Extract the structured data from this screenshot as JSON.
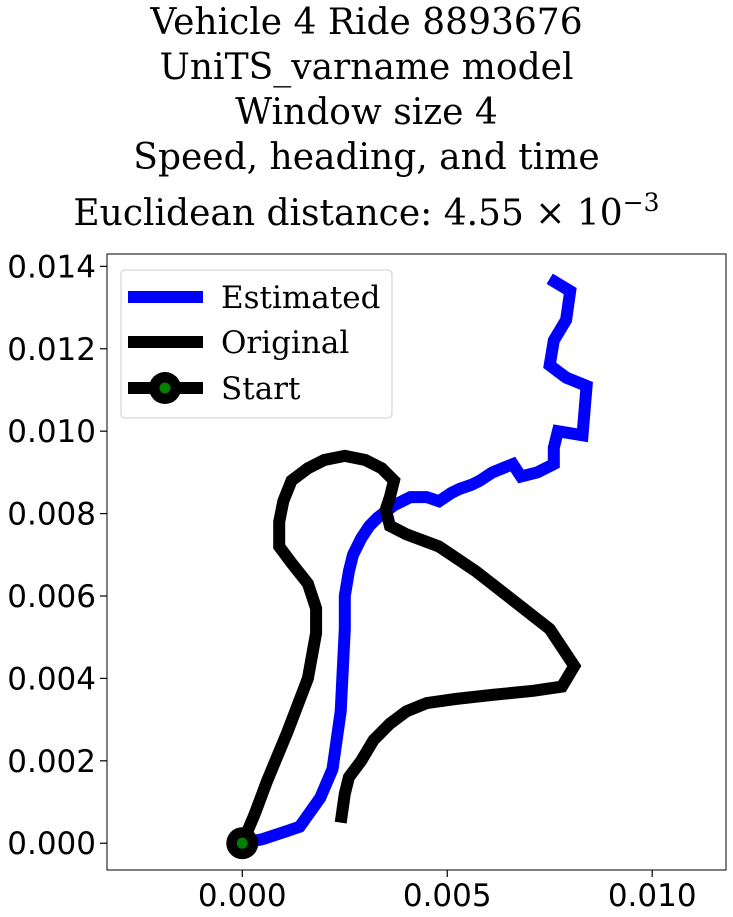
{
  "title_lines": [
    "Vehicle 4 Ride 8893676",
    "UniTS_varname model",
    "Window size 4",
    "Speed, heading, and time"
  ],
  "title_distance_prefix": "Euclidean distance: 4.55 × 10",
  "title_distance_exponent": "−3",
  "chart_data": {
    "type": "line",
    "xlim": [
      -0.0033,
      0.0118
    ],
    "ylim": [
      -0.00065,
      0.0143
    ],
    "x_ticks": [
      0.0,
      0.005,
      0.01
    ],
    "x_tick_labels": [
      "0.000",
      "0.005",
      "0.010"
    ],
    "y_ticks": [
      0.0,
      0.002,
      0.004,
      0.006,
      0.008,
      0.01,
      0.012,
      0.014
    ],
    "y_tick_labels": [
      "0.000",
      "0.002",
      "0.004",
      "0.006",
      "0.008",
      "0.010",
      "0.012",
      "0.014"
    ],
    "legend_position": "upper-left",
    "series": [
      {
        "name": "Estimated",
        "color": "#0000ff",
        "x": [
          0.0,
          0.0005,
          0.0011,
          0.0014,
          0.0019,
          0.0022,
          0.0024,
          0.0025,
          0.0025,
          0.0026,
          0.0027,
          0.0029,
          0.0031,
          0.0033,
          0.0037,
          0.0041,
          0.0045,
          0.0048,
          0.0051,
          0.0053,
          0.0056,
          0.0058,
          0.0061,
          0.0066,
          0.0068,
          0.0072,
          0.0076,
          0.0076,
          0.0077,
          0.0083,
          0.0084,
          0.0079,
          0.0075,
          0.0076,
          0.0079,
          0.008,
          0.0075
        ],
        "y": [
          0.0,
          0.0001,
          0.0003,
          0.0004,
          0.0011,
          0.0018,
          0.0032,
          0.0052,
          0.006,
          0.0066,
          0.007,
          0.0074,
          0.0077,
          0.0079,
          0.0082,
          0.0084,
          0.0084,
          0.0083,
          0.0085,
          0.0086,
          0.0087,
          0.0088,
          0.009,
          0.0092,
          0.0089,
          0.009,
          0.0092,
          0.0096,
          0.01,
          0.0099,
          0.0111,
          0.0113,
          0.0116,
          0.0122,
          0.0127,
          0.0134,
          0.0137
        ]
      },
      {
        "name": "Original",
        "color": "#000000",
        "x": [
          0.0,
          0.0003,
          0.0006,
          0.0011,
          0.0016,
          0.0018,
          0.0018,
          0.0016,
          0.0012,
          0.0009,
          0.0009,
          0.001,
          0.0012,
          0.0016,
          0.002,
          0.0025,
          0.003,
          0.0034,
          0.0037,
          0.0036,
          0.0035,
          0.0036,
          0.004,
          0.0048,
          0.0057,
          0.0066,
          0.0075,
          0.0081,
          0.0078,
          0.0071,
          0.0061,
          0.0052,
          0.0045,
          0.004,
          0.0036,
          0.0032,
          0.0029,
          0.0026,
          0.0025,
          0.0024
        ],
        "y": [
          0.0,
          0.0007,
          0.0015,
          0.0027,
          0.004,
          0.0051,
          0.0057,
          0.0063,
          0.0068,
          0.0072,
          0.0078,
          0.0083,
          0.0088,
          0.0091,
          0.0093,
          0.0094,
          0.0093,
          0.0091,
          0.0088,
          0.0084,
          0.0081,
          0.0077,
          0.0075,
          0.0072,
          0.0066,
          0.0059,
          0.0052,
          0.0043,
          0.0038,
          0.0037,
          0.0036,
          0.0035,
          0.0034,
          0.0032,
          0.0029,
          0.0025,
          0.002,
          0.0016,
          0.0012,
          0.0005
        ]
      }
    ],
    "start_point": {
      "name": "Start",
      "x": 0.0,
      "y": 0.0,
      "outer_color": "#000000",
      "inner_color": "#008000"
    }
  }
}
